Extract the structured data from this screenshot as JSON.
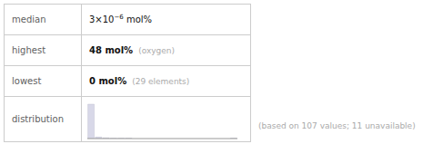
{
  "chart_data": {
    "type": "bar",
    "categories": [
      null,
      null,
      null,
      null,
      null,
      null,
      null,
      null,
      null,
      null,
      null,
      null,
      null,
      null,
      null,
      null,
      null,
      null,
      null,
      null
    ],
    "values": [
      90,
      4,
      2,
      1,
      1,
      1,
      0,
      0,
      0,
      0,
      0,
      0,
      0,
      0,
      0,
      0,
      0,
      0,
      0,
      1
    ],
    "color": "#d8d8e8",
    "ylim": [
      0,
      97.2
    ],
    "tick_labels": false,
    "annotations": [
      "median",
      "3×10",
      "−6",
      "mol%",
      "highest",
      "48 mol%",
      "(oxygen)",
      "lowest",
      "0 mol%",
      "(29 elements)",
      "distribution",
      "(based on 107 values; 11 unavailable)"
    ]
  }
}
